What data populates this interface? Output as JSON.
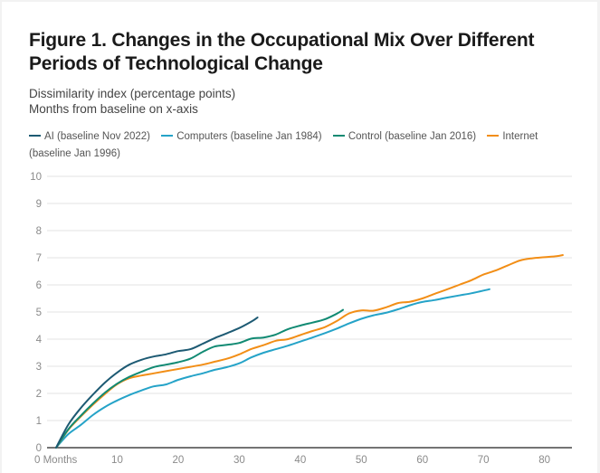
{
  "header": {
    "title": "Figure 1. Changes in the Occupational Mix Over Different Periods of Technological Change",
    "subtitle_line1": "Dissimilarity index (percentage points)",
    "subtitle_line2": "Months from baseline on x-axis"
  },
  "chart_data": {
    "type": "line",
    "title": "Figure 1. Changes in the Occupational Mix Over Different Periods of Technological Change",
    "ylabel": "Dissimilarity index (percentage points)",
    "xlabel": "Months from baseline",
    "xlim": [
      0,
      84.5
    ],
    "ylim": [
      0,
      10
    ],
    "x_ticks": [
      0,
      10,
      20,
      30,
      40,
      50,
      60,
      70,
      80
    ],
    "x_tick_labels": [
      "0 Months",
      "10",
      "20",
      "30",
      "40",
      "50",
      "60",
      "70",
      "80"
    ],
    "y_ticks": [
      0,
      1,
      2,
      3,
      4,
      5,
      6,
      7,
      8,
      9,
      10
    ],
    "y_tick_labels": [
      "0",
      "1",
      "2",
      "3",
      "4",
      "5",
      "6",
      "7",
      "8",
      "9",
      "10"
    ],
    "grid": true,
    "legend_position": "top",
    "series": [
      {
        "name": "AI (baseline Nov 2022)",
        "color": "#1d5a73",
        "x": [
          0,
          2,
          4,
          6,
          8,
          10,
          12,
          14,
          16,
          18,
          20,
          22,
          24,
          26,
          28,
          30,
          32,
          33
        ],
        "values": [
          0,
          0.85,
          1.45,
          1.95,
          2.4,
          2.77,
          3.06,
          3.24,
          3.36,
          3.44,
          3.56,
          3.63,
          3.83,
          4.04,
          4.22,
          4.41,
          4.65,
          4.8
        ]
      },
      {
        "name": "Computers (baseline Jan 1984)",
        "color": "#25a3c8",
        "x": [
          0,
          2,
          4,
          6,
          8,
          10,
          12,
          14,
          16,
          18,
          20,
          22,
          24,
          26,
          28,
          30,
          32,
          34,
          36,
          38,
          40,
          42,
          44,
          46,
          48,
          50,
          52,
          54,
          56,
          58,
          60,
          62,
          64,
          66,
          68,
          70,
          71
        ],
        "values": [
          0,
          0.5,
          0.83,
          1.2,
          1.5,
          1.74,
          1.94,
          2.11,
          2.26,
          2.33,
          2.5,
          2.63,
          2.74,
          2.87,
          2.97,
          3.11,
          3.33,
          3.5,
          3.63,
          3.76,
          3.91,
          4.06,
          4.22,
          4.39,
          4.58,
          4.75,
          4.88,
          4.97,
          5.1,
          5.25,
          5.37,
          5.44,
          5.53,
          5.61,
          5.69,
          5.79,
          5.84
        ]
      },
      {
        "name": "Control (baseline Jan 2016)",
        "color": "#118a73",
        "x": [
          0,
          2,
          4,
          6,
          8,
          10,
          12,
          14,
          16,
          18,
          20,
          22,
          24,
          26,
          28,
          30,
          32,
          34,
          36,
          38,
          40,
          42,
          44,
          46,
          47
        ],
        "values": [
          0,
          0.68,
          1.17,
          1.62,
          2.03,
          2.36,
          2.61,
          2.8,
          2.97,
          3.06,
          3.15,
          3.28,
          3.53,
          3.73,
          3.79,
          3.86,
          4.02,
          4.06,
          4.17,
          4.37,
          4.5,
          4.61,
          4.73,
          4.94,
          5.08
        ]
      },
      {
        "name": "Internet (baseline Jan 1996)",
        "color": "#f28e16",
        "x": [
          0,
          2,
          4,
          6,
          8,
          10,
          12,
          14,
          16,
          18,
          20,
          22,
          24,
          26,
          28,
          30,
          32,
          34,
          36,
          38,
          40,
          42,
          44,
          46,
          48,
          50,
          52,
          54,
          56,
          58,
          60,
          62,
          64,
          66,
          68,
          70,
          72,
          74,
          76,
          78,
          80,
          82,
          83
        ],
        "values": [
          0,
          0.66,
          1.14,
          1.58,
          1.98,
          2.34,
          2.56,
          2.66,
          2.74,
          2.82,
          2.9,
          2.98,
          3.06,
          3.17,
          3.28,
          3.44,
          3.64,
          3.78,
          3.94,
          4.0,
          4.15,
          4.3,
          4.44,
          4.67,
          4.95,
          5.06,
          5.05,
          5.17,
          5.33,
          5.38,
          5.5,
          5.67,
          5.83,
          6.0,
          6.17,
          6.38,
          6.53,
          6.72,
          6.9,
          6.98,
          7.02,
          7.06,
          7.1
        ]
      }
    ]
  }
}
